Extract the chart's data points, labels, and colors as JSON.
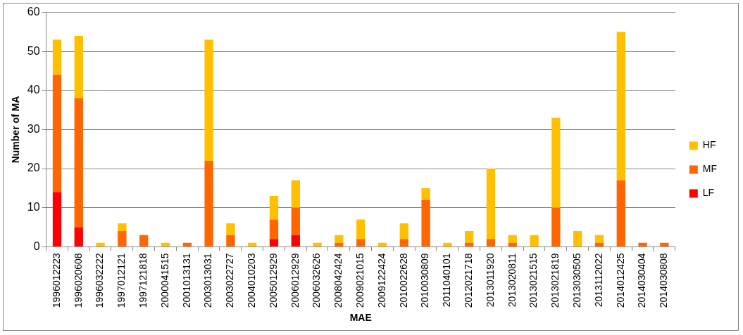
{
  "chart_data": {
    "type": "bar",
    "stacked": true,
    "xlabel": "MAE",
    "ylabel": "Number of MA",
    "categories": [
      "1996012223",
      "1996020608",
      "1996032222",
      "1997012121",
      "1997121818",
      "2000041515",
      "2001013131",
      "2003013031",
      "2003022727",
      "2004010203",
      "2005012929",
      "2006012929",
      "2006032626",
      "2008042424",
      "2009021015",
      "2009122424",
      "2010022628",
      "2010030809",
      "2011040101",
      "2012021718",
      "2013011920",
      "2013020811",
      "2013021515",
      "2013021819",
      "2013030505",
      "2013112022",
      "2014012425",
      "2014030404",
      "2014030808"
    ],
    "series": [
      {
        "name": "LF",
        "color": "#ff0000",
        "values": [
          14,
          5,
          0,
          0,
          0,
          0,
          0,
          0,
          0,
          0,
          2,
          3,
          0,
          0,
          0,
          0,
          0,
          0,
          0,
          0,
          0,
          0,
          0,
          0,
          0,
          0,
          0,
          0,
          0
        ]
      },
      {
        "name": "MF",
        "color": "#ff6600",
        "values": [
          30,
          33,
          0,
          4,
          3,
          0,
          1,
          22,
          3,
          0,
          5,
          7,
          0,
          1,
          2,
          0,
          2,
          12,
          0,
          1,
          2,
          1,
          0,
          10,
          0,
          1,
          17,
          1,
          1
        ]
      },
      {
        "name": "HF",
        "color": "#ffc000",
        "values": [
          9,
          16,
          1,
          2,
          0,
          1,
          0,
          31,
          3,
          1,
          6,
          7,
          1,
          2,
          5,
          1,
          4,
          3,
          1,
          3,
          18,
          2,
          3,
          23,
          4,
          2,
          38,
          0,
          0
        ]
      }
    ],
    "ylim": [
      0,
      60
    ],
    "yticks": [
      0,
      10,
      20,
      30,
      40,
      50,
      60
    ],
    "grid": "y",
    "legend": "right"
  }
}
